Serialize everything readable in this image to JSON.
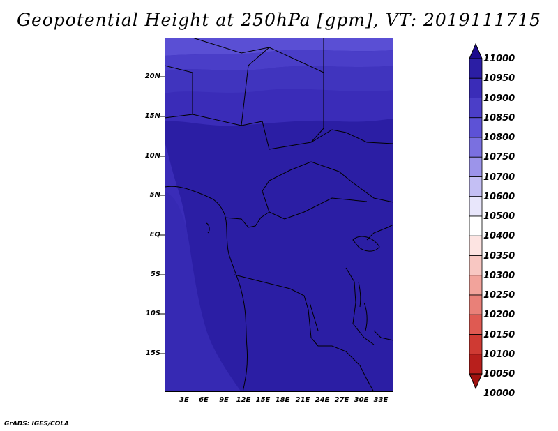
{
  "title": "Geopotential Height at 250hPa [gpm], VT: 2019111715",
  "footer": "GrADS: IGES/COLA",
  "map": {
    "y_labels": [
      "20N",
      "15N",
      "10N",
      "5N",
      "EQ",
      "5S",
      "10S",
      "15S"
    ],
    "x_labels": [
      "3E",
      "6E",
      "9E",
      "12E",
      "15E",
      "18E",
      "21E",
      "24E",
      "27E",
      "30E",
      "33E"
    ],
    "fill_levels_gpm": [
      10900,
      10950
    ],
    "fill_colors": {
      "10900": "#3a2cb8",
      "10950": "#2b1ea4"
    }
  },
  "colorbar": {
    "labels": [
      "11000",
      "10950",
      "10900",
      "10850",
      "10800",
      "10750",
      "10700",
      "10600",
      "10500",
      "10400",
      "10350",
      "10300",
      "10250",
      "10200",
      "10150",
      "10100",
      "10050",
      "10000"
    ],
    "colors": [
      "#1c0a8e",
      "#2b1ea4",
      "#3a2cb8",
      "#4b3ec8",
      "#5d52d6",
      "#7a70e0",
      "#9c94ea",
      "#c4bff4",
      "#e8e6fb",
      "#ffffff",
      "#fde4e2",
      "#f8c7c2",
      "#f2a39b",
      "#e98078",
      "#df5a52",
      "#cf3a33",
      "#b81f1c",
      "#a0120f"
    ]
  }
}
